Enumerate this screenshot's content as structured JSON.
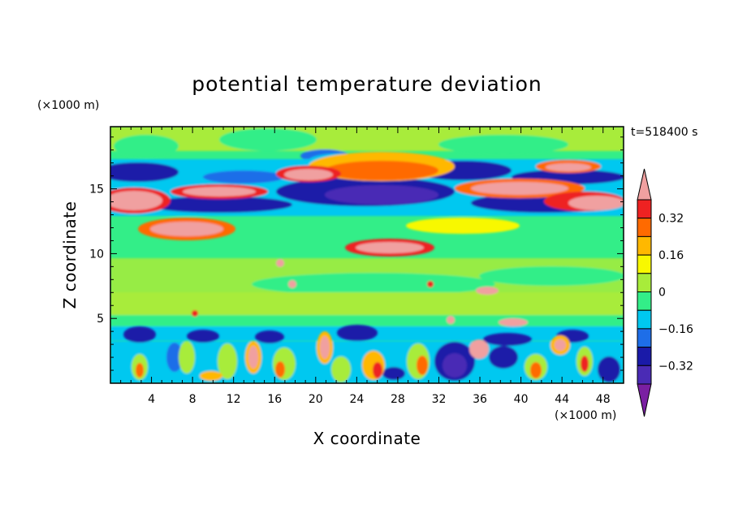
{
  "chart_data": {
    "type": "heatmap",
    "title": "potential temperature deviation",
    "time_label": "t=518400 s",
    "xlabel": "X coordinate",
    "ylabel": "Z coordinate",
    "x_unit": "(×1000 m)",
    "y_unit": "(×1000 m)",
    "xlim": [
      0,
      50
    ],
    "ylim": [
      0,
      19.8
    ],
    "x_ticks": [
      4,
      8,
      12,
      16,
      20,
      24,
      28,
      32,
      36,
      40,
      44,
      48
    ],
    "y_ticks": [
      5,
      10,
      15
    ],
    "colorbar": {
      "levels": [
        -0.4,
        -0.32,
        -0.24,
        -0.16,
        -0.08,
        0,
        0.08,
        0.16,
        0.24,
        0.32,
        0.4
      ],
      "tick_labels": [
        "0.32",
        "0.16",
        "0",
        "−0.16",
        "−0.32"
      ],
      "colors": [
        "#7a1fa2",
        "#4a2bb5",
        "#1a1aa8",
        "#1e6ee8",
        "#00c8f0",
        "#33ee88",
        "#a8ec3a",
        "#f8f800",
        "#ffb800",
        "#ff6a00",
        "#ee2222",
        "#f0a0a0"
      ]
    }
  }
}
